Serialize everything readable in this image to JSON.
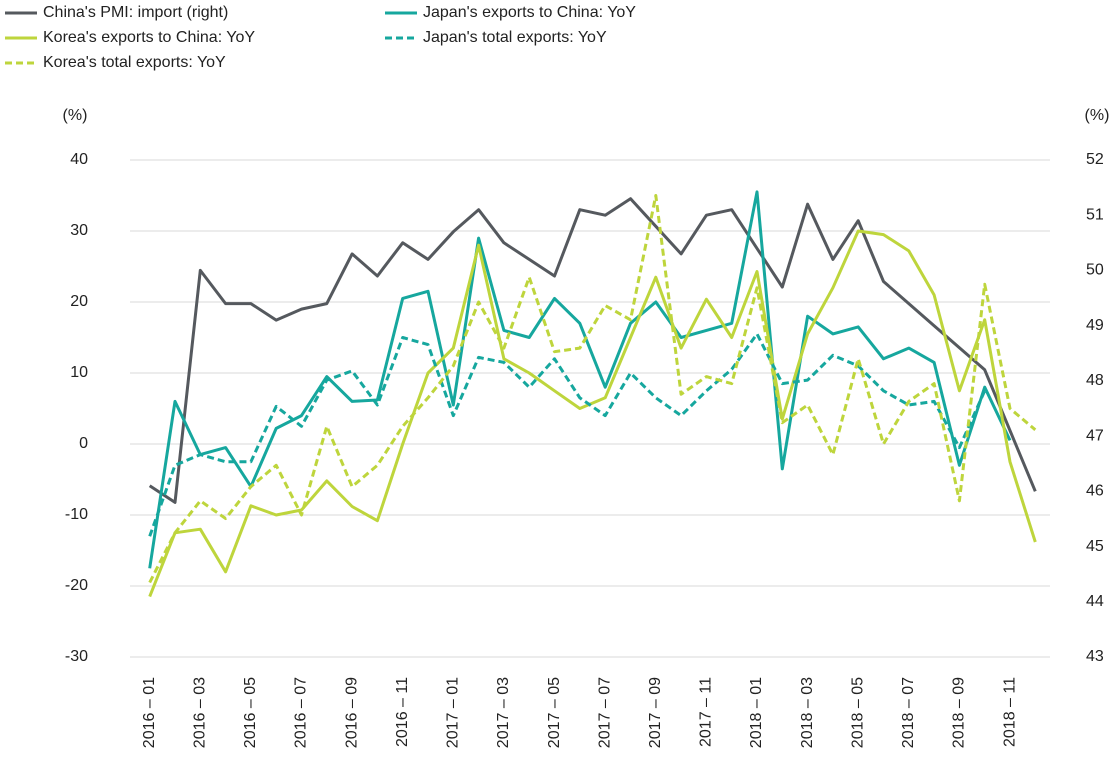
{
  "chart_data": {
    "type": "line",
    "y_label": "(%)",
    "y2_label": "(%)",
    "categories": [
      "2016 – 01",
      null,
      "2016 – 03",
      null,
      "2016 – 05",
      null,
      "2016 – 07",
      null,
      "2016 – 09",
      null,
      "2016 – 11",
      null,
      "2017 – 01",
      null,
      "2017 – 03",
      null,
      "2017 – 05",
      null,
      "2017 – 07",
      null,
      "2017 – 09",
      null,
      "2017 – 11",
      null,
      "2018 – 01",
      null,
      "2018 – 03",
      null,
      "2018 – 05",
      null,
      "2018 – 07",
      null,
      "2018 – 09",
      null,
      "2018 – 11",
      null
    ],
    "ylim": [
      -30,
      40
    ],
    "yticks": [
      -30,
      -20,
      -10,
      0,
      10,
      20,
      30,
      40
    ],
    "y2lim": [
      43,
      52
    ],
    "y2ticks": [
      43,
      44,
      45,
      46,
      47,
      48,
      49,
      50,
      51,
      52
    ],
    "grid": true,
    "legend": "top",
    "series": [
      {
        "name": "China's PMI: import (right)",
        "color": "#55595e",
        "style": "solid",
        "axis": "y2",
        "values": [
          46.1,
          45.8,
          50.0,
          49.4,
          49.4,
          49.1,
          49.3,
          49.4,
          50.3,
          49.9,
          50.5,
          50.2,
          50.7,
          51.1,
          50.5,
          50.2,
          49.9,
          51.1,
          51.0,
          51.3,
          50.8,
          50.3,
          51.0,
          51.1,
          50.4,
          49.7,
          51.2,
          50.2,
          50.9,
          49.8,
          49.4,
          49.0,
          48.6,
          48.2,
          47.1,
          46.0
        ]
      },
      {
        "name": "Japan's exports to China: YoY",
        "color": "#16a79e",
        "style": "solid",
        "values": [
          -17.5,
          6,
          -1.5,
          -0.5,
          -6,
          2.2,
          4,
          9.5,
          6,
          6.2,
          20.5,
          21.5,
          5.5,
          29,
          16,
          15,
          20.5,
          17,
          8,
          17,
          20,
          15,
          16,
          17,
          35.5,
          -3.5,
          18,
          15.5,
          16.5,
          12,
          13.5,
          11.5,
          -3,
          8,
          0.5,
          null
        ]
      },
      {
        "name": "Korea's exports to China: YoY",
        "color": "#bed53c",
        "style": "solid",
        "values": [
          -21.5,
          -12.5,
          -12,
          -18,
          -8.7,
          -10,
          -9.3,
          -5.2,
          -8.8,
          -10.8,
          0,
          10,
          13.5,
          28,
          12,
          10,
          7.5,
          5,
          6.5,
          15,
          23.5,
          13.5,
          20.4,
          15,
          24.3,
          3.5,
          15.5,
          22,
          30,
          29.5,
          27.2,
          21,
          7.5,
          17.5,
          -2.5,
          -13.8
        ]
      },
      {
        "name": "Japan's total exports: YoY",
        "color": "#16a79e",
        "style": "dashed",
        "values": [
          -13,
          -3,
          -1.5,
          -2.5,
          -2.5,
          5.3,
          2.5,
          9,
          10.3,
          5.5,
          15,
          14,
          4,
          12.2,
          11.5,
          8,
          12,
          6.5,
          4,
          10,
          6.5,
          4,
          7.5,
          10.5,
          15.5,
          8.5,
          9,
          12.5,
          11,
          7.5,
          5.5,
          6,
          -0.5,
          7.5,
          null,
          null
        ]
      },
      {
        "name": "Korea's total exports: YoY",
        "color": "#bed53c",
        "style": "dashed",
        "values": [
          -19.5,
          -12.5,
          -8,
          -10.5,
          -6,
          -3,
          -10,
          2.5,
          -6,
          -3,
          2.5,
          6.5,
          11,
          20,
          13.5,
          23.5,
          13,
          13.5,
          19.5,
          17.5,
          35,
          7,
          9.5,
          8.5,
          22,
          3,
          5.5,
          -1.5,
          12,
          0,
          6,
          8.5,
          -8,
          22.5,
          5,
          2
        ]
      }
    ]
  }
}
